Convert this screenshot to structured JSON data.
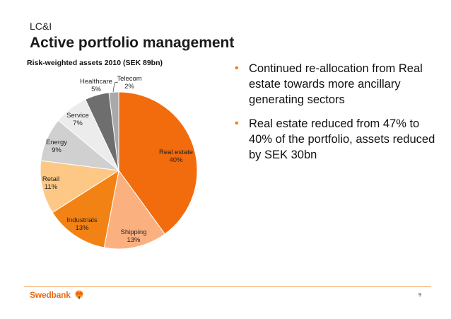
{
  "section": "LC&I",
  "title": "Active portfolio management",
  "colors": {
    "accent": "#f07b05",
    "logo": "#e96b10"
  },
  "chart_data": {
    "type": "pie",
    "title": "Risk-weighted assets 2010 (SEK 89bn)",
    "slices": [
      {
        "label": "Real estate",
        "value": 40,
        "value_label": "40%",
        "color": "#f26b0c"
      },
      {
        "label": "Shipping",
        "value": 13,
        "value_label": "13%",
        "color": "#fbb17f"
      },
      {
        "label": "Industrials",
        "value": 13,
        "value_label": "13%",
        "color": "#f28213"
      },
      {
        "label": "Retail",
        "value": 11,
        "value_label": "11%",
        "color": "#fdc886"
      },
      {
        "label": "Energy",
        "value": 9,
        "value_label": "9%",
        "color": "#d0d0d0"
      },
      {
        "label": "Service",
        "value": 7,
        "value_label": "7%",
        "color": "#ececec"
      },
      {
        "label": "Healthcare",
        "value": 5,
        "value_label": "5%",
        "color": "#6e6e6e"
      },
      {
        "label": "Telecom",
        "value": 2,
        "value_label": "2%",
        "color": "#a9a9a9"
      }
    ],
    "start": "12 o'clock",
    "direction": "clockwise"
  },
  "bullets": [
    "Continued re-allocation from Real estate towards more ancillary generating sectors",
    "Real estate reduced from 47% to 40% of the portfolio, assets reduced by SEK 30bn"
  ],
  "footer": {
    "logo_text": "Swedbank",
    "page_number": "9"
  }
}
